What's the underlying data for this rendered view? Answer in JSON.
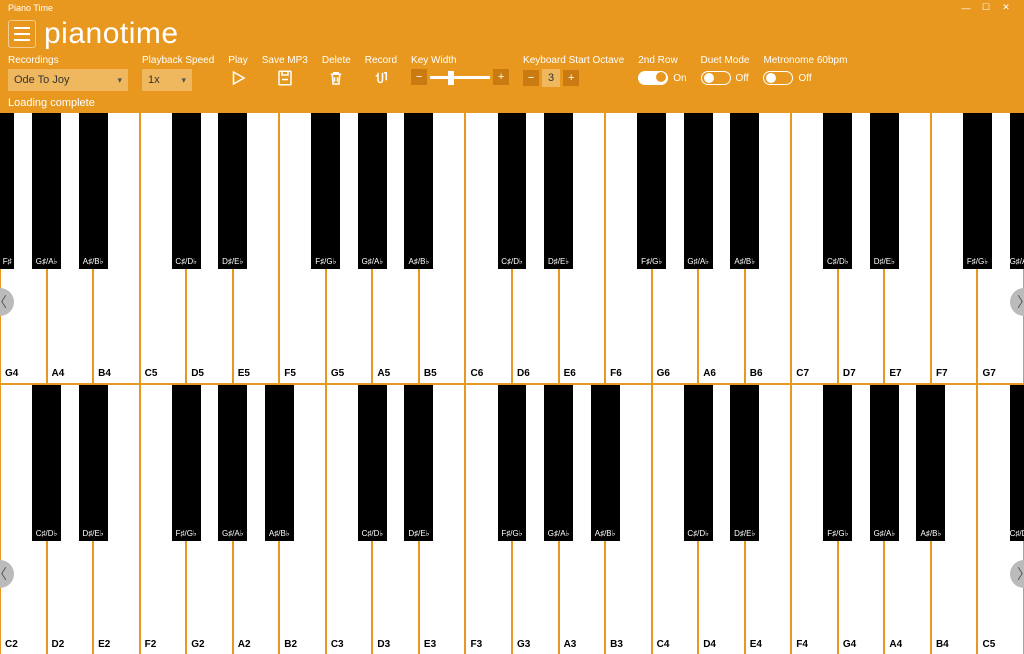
{
  "window": {
    "title": "Piano Time"
  },
  "app": {
    "title": "pianotime"
  },
  "toolbar": {
    "recordings": {
      "label": "Recordings",
      "value": "Ode To Joy"
    },
    "playback": {
      "label": "Playback Speed",
      "value": "1x"
    },
    "play": {
      "label": "Play"
    },
    "savemp3": {
      "label": "Save MP3"
    },
    "delete": {
      "label": "Delete"
    },
    "record": {
      "label": "Record"
    },
    "keywidth": {
      "label": "Key Width"
    },
    "startoctave": {
      "label": "Keyboard Start Octave",
      "value": "3"
    },
    "row2": {
      "label": "2nd Row",
      "state": "On"
    },
    "duet": {
      "label": "Duet Mode",
      "state": "Off"
    },
    "metronome": {
      "label": "Metronome 60bpm",
      "state": "Off"
    }
  },
  "status": "Loading complete",
  "colors": {
    "bg": "#e8981f",
    "panel": "#f0b85e",
    "accent": "#c97a10"
  },
  "keyboard": {
    "row1_start_white": "G4",
    "row2_start_white": "C2",
    "white_count": 22,
    "notes_white": [
      "C",
      "D",
      "E",
      "F",
      "G",
      "A",
      "B"
    ],
    "black_after_index": [
      0,
      1,
      3,
      4,
      5
    ],
    "black_names": [
      "C♯/D♭",
      "D♯/E♭",
      "F♯/G♭",
      "G♯/A♭",
      "A♯/B♭"
    ]
  }
}
